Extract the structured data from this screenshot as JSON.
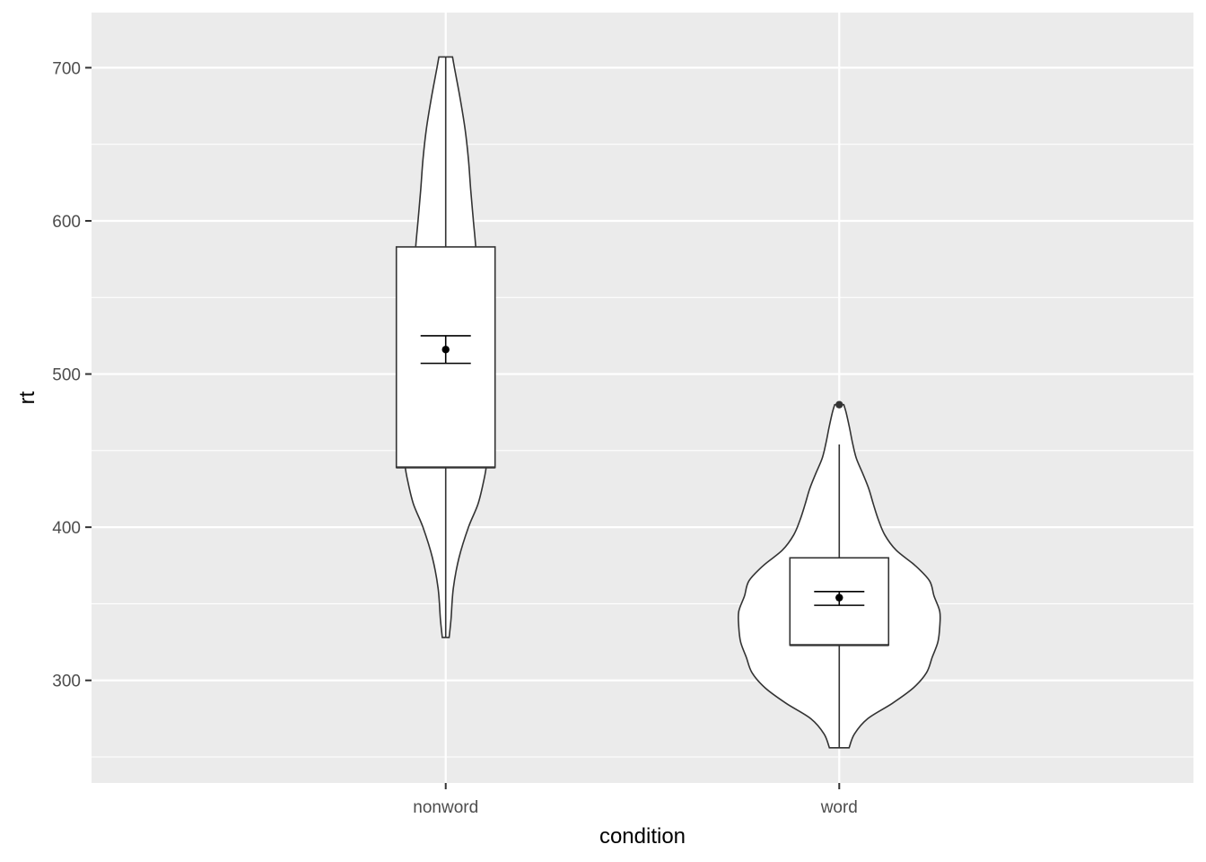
{
  "chart_data": {
    "type": "violin",
    "xlabel": "condition",
    "ylabel": "rt",
    "categories": [
      "nonword",
      "word"
    ],
    "ylim": [
      233,
      736
    ],
    "y_ticks": [
      300,
      400,
      500,
      600,
      700
    ],
    "y_minor_ticks": [
      250,
      350,
      450,
      550,
      650
    ],
    "grid": true,
    "background_color": "#ebebeb",
    "grid_color": "#ffffff",
    "groups": [
      {
        "category": "nonword",
        "violin": [
          [
            328,
            9
          ],
          [
            340,
            14
          ],
          [
            360,
            20
          ],
          [
            380,
            35
          ],
          [
            400,
            60
          ],
          [
            415,
            85
          ],
          [
            430,
            100
          ],
          [
            440,
            107
          ],
          [
            450,
            107
          ],
          [
            460,
            104
          ],
          [
            480,
            97
          ],
          [
            500,
            90
          ],
          [
            520,
            86
          ],
          [
            540,
            85
          ],
          [
            560,
            83
          ],
          [
            580,
            80
          ],
          [
            600,
            73
          ],
          [
            620,
            66
          ],
          [
            640,
            60
          ],
          [
            660,
            51
          ],
          [
            680,
            38
          ],
          [
            700,
            23
          ],
          [
            707,
            18
          ]
        ],
        "box": {
          "lower_whisker": 328,
          "q1": 439,
          "median": 439,
          "q3": 583,
          "upper_whisker": 707
        },
        "outliers": [],
        "mean": 516,
        "ci": [
          507,
          525
        ]
      },
      {
        "category": "word",
        "violin": [
          [
            256,
            26
          ],
          [
            265,
            40
          ],
          [
            275,
            75
          ],
          [
            285,
            140
          ],
          [
            295,
            195
          ],
          [
            305,
            230
          ],
          [
            315,
            245
          ],
          [
            325,
            260
          ],
          [
            335,
            265
          ],
          [
            345,
            265
          ],
          [
            355,
            250
          ],
          [
            365,
            238
          ],
          [
            375,
            200
          ],
          [
            385,
            150
          ],
          [
            395,
            120
          ],
          [
            405,
            103
          ],
          [
            415,
            90
          ],
          [
            425,
            78
          ],
          [
            435,
            62
          ],
          [
            445,
            45
          ],
          [
            455,
            35
          ],
          [
            465,
            27
          ],
          [
            475,
            18
          ],
          [
            480,
            12
          ]
        ],
        "box": {
          "lower_whisker": 256,
          "q1": 323,
          "median": 323,
          "q3": 380,
          "upper_whisker": 454
        },
        "outliers": [
          480
        ],
        "mean": 354,
        "ci": [
          349,
          358
        ]
      }
    ]
  }
}
